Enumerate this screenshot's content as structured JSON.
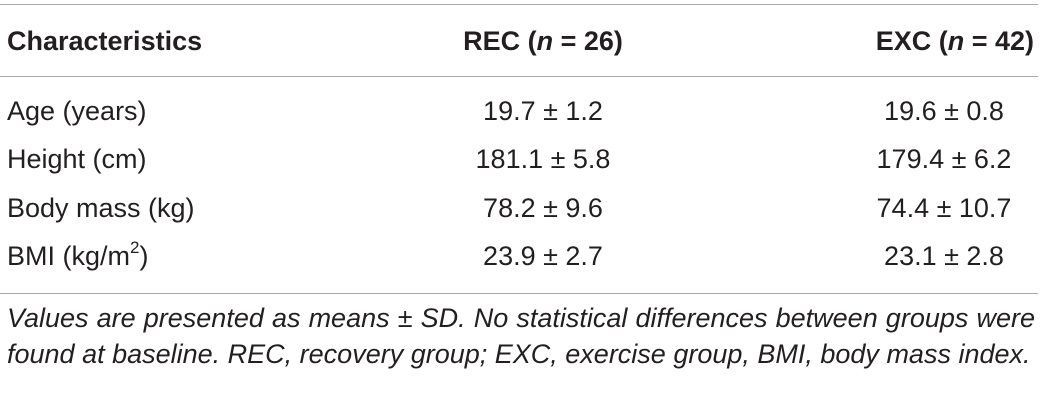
{
  "table": {
    "headers": {
      "characteristics": "Characteristics",
      "rec_label": "REC (",
      "rec_n": "n",
      "rec_count": " = 26)",
      "exc_label": "EXC (",
      "exc_n": "n",
      "exc_count": " = 42)"
    },
    "rows": [
      {
        "label": "Age (years)",
        "label_sup": "",
        "label_end": "",
        "rec": "19.7 ± 1.2",
        "exc": "19.6 ± 0.8"
      },
      {
        "label": "Height (cm)",
        "label_sup": "",
        "label_end": "",
        "rec": "181.1 ± 5.8",
        "exc": "179.4 ± 6.2"
      },
      {
        "label": "Body mass (kg)",
        "label_sup": "",
        "label_end": "",
        "rec": "78.2 ± 9.6",
        "exc": "74.4 ± 10.7"
      },
      {
        "label": "BMI (kg/m",
        "label_sup": "2",
        "label_end": ")",
        "rec": "23.9 ± 2.7",
        "exc": "23.1 ± 2.8"
      }
    ],
    "footnote": "Values are presented as means ± SD. No statistical differences between groups were found at baseline. REC, recovery group; EXC, exercise group, BMI, body mass index."
  }
}
